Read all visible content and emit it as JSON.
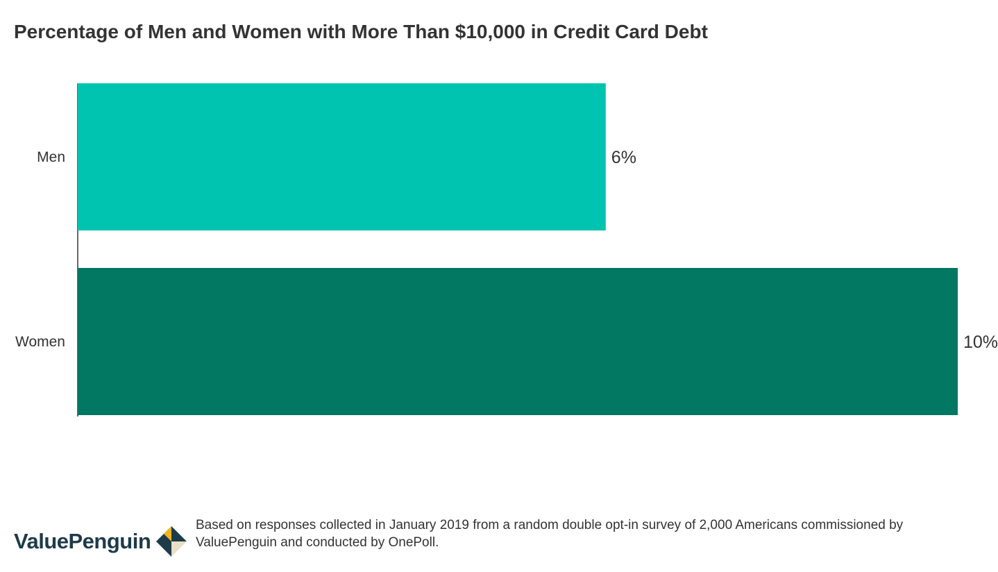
{
  "chart_data": {
    "type": "bar",
    "orientation": "horizontal",
    "title": "Percentage of Men and Women with More Than $10,000 in Credit Card Debt",
    "categories": [
      "Men",
      "Women"
    ],
    "values": [
      6,
      10
    ],
    "value_labels": [
      "6%",
      "10%"
    ],
    "colors": [
      "#00c4b0",
      "#027762"
    ],
    "xlim": [
      0,
      10
    ],
    "grid": false,
    "legend": "none"
  },
  "footer": {
    "brand": "ValuePenguin",
    "source": "Based on responses collected in January 2019 from a random double opt-in survey of 2,000 Americans commissioned by ValuePenguin and conducted by OnePoll."
  },
  "colors": {
    "logo_navy": "#1d3b4a",
    "logo_gold": "#f2b51c",
    "logo_cream": "#e9e0c5"
  }
}
